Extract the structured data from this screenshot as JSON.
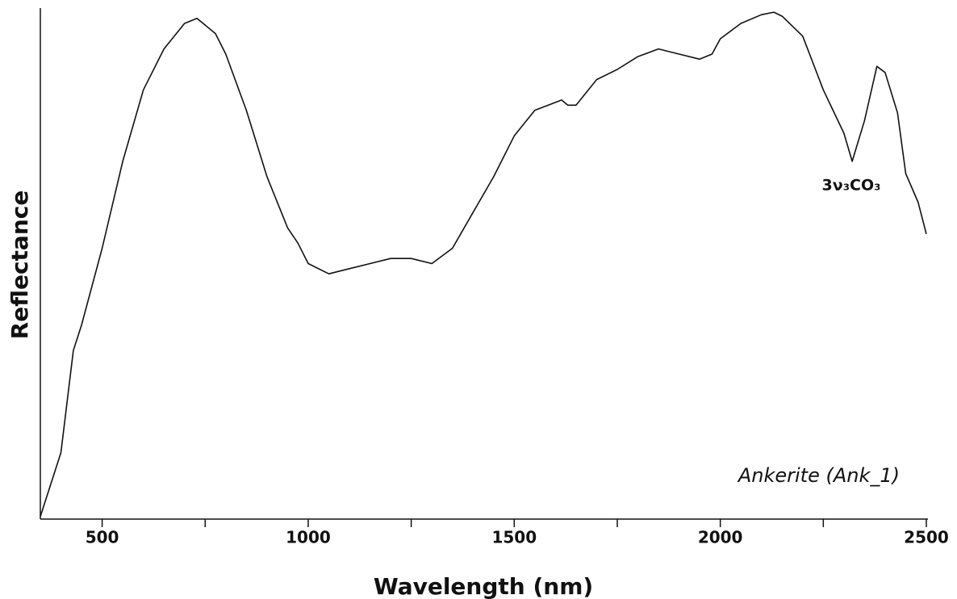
{
  "chart_data": {
    "type": "line",
    "xlabel": "Wavelength (nm)",
    "ylabel": "Reflectance",
    "xlim": [
      350,
      2500
    ],
    "ylim": [
      0,
      100
    ],
    "xticks": [
      500,
      1000,
      1500,
      2000,
      2500
    ],
    "xminorticks": [
      750,
      1250,
      1750,
      2250
    ],
    "annotations": [
      "3ν₃CO₃",
      "Ankerite (Ank_1)"
    ],
    "series": [
      {
        "color": "#111111",
        "x": [
          350,
          400,
          430,
          450,
          500,
          550,
          600,
          650,
          700,
          730,
          775,
          800,
          850,
          900,
          950,
          975,
          1000,
          1050,
          1100,
          1150,
          1200,
          1250,
          1300,
          1350,
          1400,
          1450,
          1500,
          1550,
          1615,
          1630,
          1650,
          1700,
          1750,
          1800,
          1850,
          1900,
          1950,
          1980,
          2000,
          2050,
          2100,
          2130,
          2150,
          2200,
          2250,
          2300,
          2320,
          2350,
          2380,
          2400,
          2430,
          2450,
          2480,
          2500
        ],
        "values": [
          0.5,
          13,
          33,
          38,
          53,
          70,
          84,
          92,
          97,
          98,
          95,
          91,
          80,
          67,
          57,
          54,
          50,
          48,
          49,
          50,
          51,
          51,
          50,
          53,
          60,
          67,
          75,
          80,
          82,
          81,
          81,
          86,
          88,
          90.5,
          92,
          91,
          90,
          91,
          94,
          97,
          98.7,
          99.2,
          98.4,
          94.5,
          84,
          75.5,
          70,
          78,
          88.6,
          87.4,
          79.5,
          67.6,
          62,
          55.8
        ]
      }
    ]
  }
}
